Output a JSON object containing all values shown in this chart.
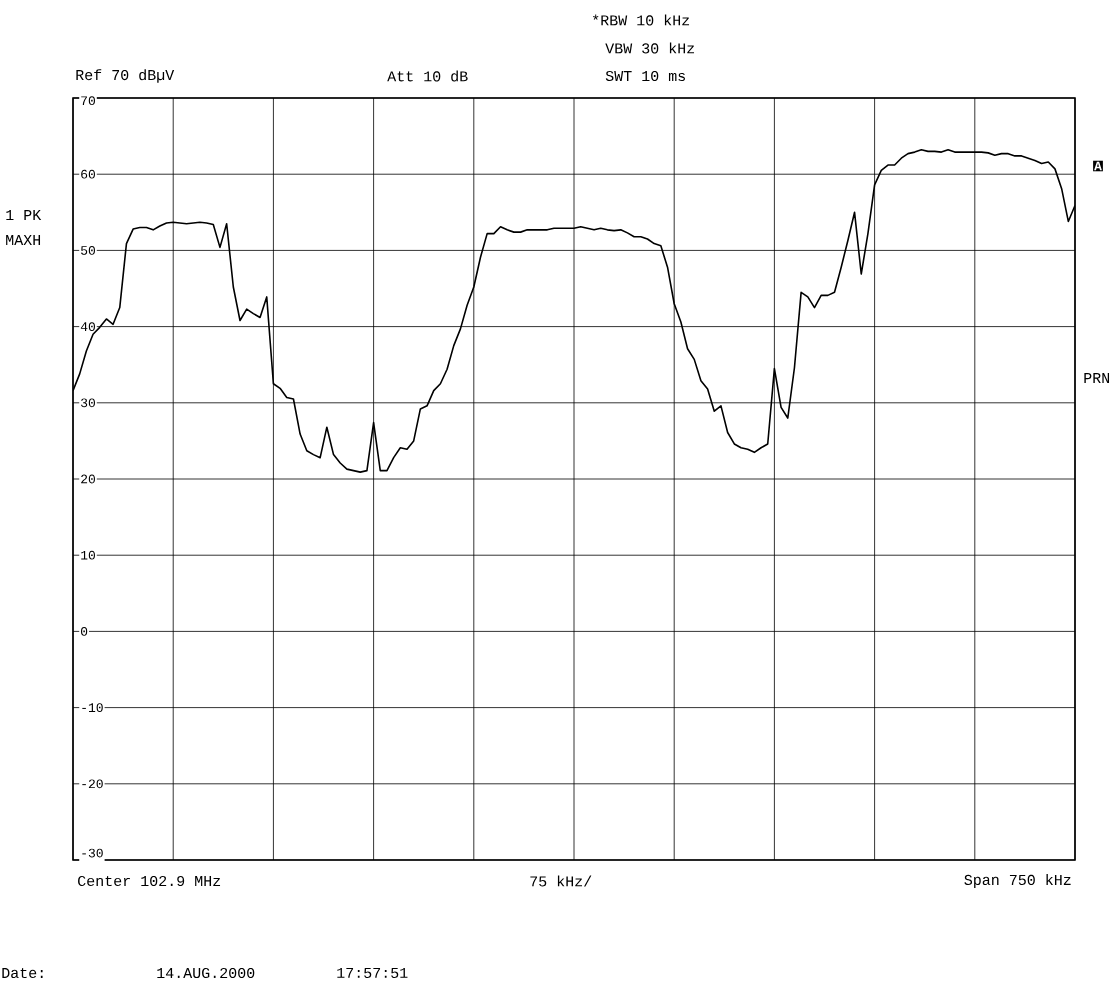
{
  "chart_data": {
    "type": "line",
    "categories": [
      null,
      null,
      null,
      null,
      null,
      null,
      null,
      null,
      null,
      null,
      null,
      null,
      null,
      null,
      null,
      null,
      null,
      null,
      null,
      null,
      null,
      null,
      null,
      null,
      null,
      null,
      null,
      null,
      null,
      null,
      null,
      null,
      null,
      null,
      null,
      null,
      null,
      null,
      null,
      null,
      null,
      null,
      null,
      null,
      null,
      null,
      null,
      null,
      null,
      null,
      null,
      null,
      null,
      null,
      null,
      null,
      null,
      null,
      null,
      null,
      null,
      null,
      null,
      null,
      null,
      null,
      null,
      null,
      null,
      null,
      null,
      null,
      null,
      null,
      null,
      null,
      null,
      null,
      null,
      null,
      null,
      null,
      null,
      null,
      null,
      null,
      null,
      null,
      null,
      null,
      null,
      null,
      null,
      null,
      null,
      null,
      null,
      null,
      null,
      null,
      null,
      null,
      null,
      null,
      null,
      null,
      null,
      null,
      null,
      null,
      null,
      null,
      null,
      null,
      null,
      null,
      null,
      null,
      null,
      null,
      null,
      null,
      null,
      null,
      null,
      null,
      null,
      null,
      null,
      null,
      null,
      null,
      null,
      null,
      null,
      null,
      null,
      null,
      null,
      null,
      null,
      null,
      null,
      null,
      null,
      null,
      null,
      null,
      null,
      null,
      null
    ],
    "values": [
      31.6,
      33.8,
      36.8,
      39,
      39.9,
      41,
      40.3,
      42.5,
      50.9,
      52.8,
      53,
      53,
      52.7,
      53.2,
      53.6,
      53.7,
      53.6,
      53.5,
      53.6,
      53.7,
      53.6,
      53.4,
      50.4,
      53.5,
      45.2,
      40.8,
      42.3,
      41.7,
      41.2,
      43.9,
      32.5,
      31.9,
      30.7,
      30.5,
      25.9,
      23.7,
      23.2,
      22.8,
      26.8,
      23.2,
      22.1,
      21.3,
      21.1,
      20.9,
      21.1,
      27.4,
      21.1,
      21.1,
      22.8,
      24.1,
      23.9,
      25,
      29.2,
      29.6,
      31.6,
      32.5,
      34.4,
      37.5,
      39.7,
      42.8,
      45.2,
      49.1,
      52.2,
      52.2,
      53.1,
      52.7,
      52.4,
      52.4,
      52.7,
      52.7,
      52.7,
      52.7,
      52.9,
      52.9,
      52.9,
      52.9,
      53.1,
      52.9,
      52.7,
      52.9,
      52.7,
      52.6,
      52.7,
      52.3,
      51.8,
      51.8,
      51.5,
      50.9,
      50.6,
      47.8,
      43,
      40.6,
      37.1,
      35.7,
      32.9,
      31.8,
      28.9,
      29.6,
      26.1,
      24.6,
      24.1,
      23.9,
      23.5,
      24.1,
      24.6,
      34.5,
      29.4,
      28,
      34.6,
      44.5,
      43.9,
      42.5,
      44.1,
      44.1,
      44.5,
      47.8,
      51.3,
      55,
      46.9,
      52.2,
      58.6,
      60.5,
      61.2,
      61.2,
      62.1,
      62.7,
      62.9,
      63.2,
      63,
      63,
      62.9,
      63.2,
      62.9,
      62.9,
      62.9,
      62.9,
      62.9,
      62.8,
      62.5,
      62.7,
      62.7,
      62.4,
      62.4,
      62.1,
      61.8,
      61.4,
      61.6,
      60.7,
      58.1,
      53.8,
      55.9
    ],
    "color": "#000000",
    "ylim": [
      -30,
      70
    ],
    "yticks": [
      -30,
      -20,
      -10,
      0,
      10,
      20,
      30,
      40,
      50,
      60,
      70
    ],
    "grid": true,
    "tick_labels": "y",
    "line_style": "solid",
    "annotations": [
      "*RBW 10 kHz",
      "VBW 30 kHz",
      "SWT 10 ms",
      "Ref 70 dBµV",
      "Att 10 dB",
      "1 PK",
      "MAXH",
      "A",
      "PRN",
      "Center 102.9 MHz",
      "75 kHz/",
      "Span 750 kHz",
      "Date:",
      "14.AUG.2000",
      "17:57:51"
    ]
  }
}
